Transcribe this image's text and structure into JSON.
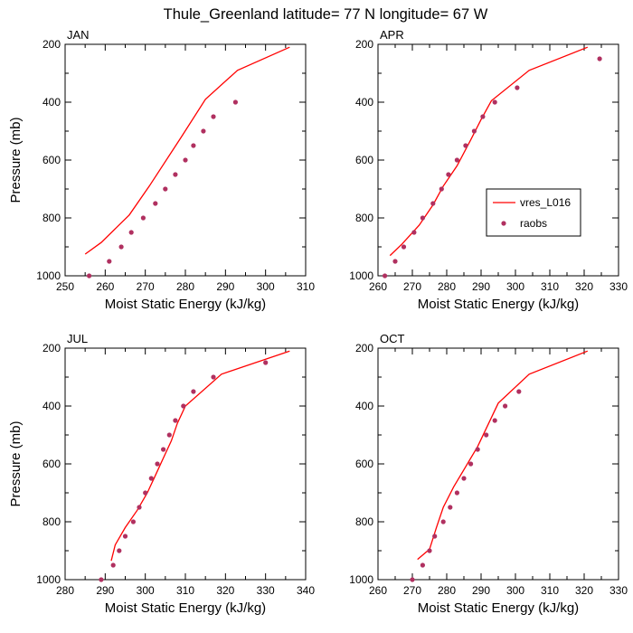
{
  "title": "Thule_Greenland  latitude= 77 N longitude= 67 W",
  "colors": {
    "model": "#ff0000",
    "obs": "#b03060",
    "axis": "#000000"
  },
  "chart_data": [
    {
      "type": "line",
      "panel": "JAN",
      "xlabel": "Moist Static Energy (kJ/kg)",
      "ylabel": "Pressure (mb)",
      "xlim": [
        250,
        310
      ],
      "xticks": [
        250,
        260,
        270,
        280,
        290,
        300,
        310
      ],
      "ylim": [
        1000,
        200
      ],
      "yticks": [
        200,
        400,
        600,
        800,
        1000
      ],
      "ylabel_visible": true,
      "series": [
        {
          "name": "vres_L016",
          "style": "line",
          "x": [
            255,
            259,
            266,
            271,
            279,
            285,
            293,
            306
          ],
          "y": [
            925,
            885,
            790,
            690,
            520,
            390,
            290,
            210
          ]
        },
        {
          "name": "raobs",
          "style": "marker",
          "x": [
            256,
            261,
            264,
            266.5,
            269.5,
            272.5,
            275,
            277.5,
            280,
            282,
            284.5,
            287,
            292.5
          ],
          "y": [
            1000,
            950,
            900,
            850,
            800,
            750,
            700,
            650,
            600,
            550,
            500,
            450,
            400
          ]
        }
      ]
    },
    {
      "type": "line",
      "panel": "APR",
      "xlabel": "Moist Static Energy (kJ/kg)",
      "ylabel": "",
      "xlim": [
        260,
        330
      ],
      "xticks": [
        260,
        270,
        280,
        290,
        300,
        310,
        320,
        330
      ],
      "ylim": [
        1000,
        200
      ],
      "yticks": [
        200,
        400,
        600,
        800,
        1000
      ],
      "ylabel_visible": false,
      "legend": {
        "position": "right-middle",
        "entries": [
          "vres_L016",
          "raobs"
        ]
      },
      "series": [
        {
          "name": "vres_L016",
          "style": "line",
          "x": [
            263.5,
            267,
            272,
            276,
            279,
            283,
            287,
            290,
            293,
            304,
            321
          ],
          "y": [
            930,
            890,
            825,
            755,
            690,
            620,
            530,
            460,
            395,
            290,
            210
          ]
        },
        {
          "name": "raobs",
          "style": "marker",
          "x": [
            262,
            265,
            267.5,
            270.5,
            273,
            276,
            278.5,
            280.5,
            283,
            285.5,
            288,
            290.5,
            294,
            300.5,
            324.5
          ],
          "y": [
            1000,
            950,
            900,
            850,
            800,
            750,
            700,
            650,
            600,
            550,
            500,
            450,
            400,
            350,
            250
          ]
        }
      ]
    },
    {
      "type": "line",
      "panel": "JUL",
      "xlabel": "Moist Static Energy (kJ/kg)",
      "ylabel": "Pressure (mb)",
      "xlim": [
        280,
        340
      ],
      "xticks": [
        280,
        290,
        300,
        310,
        320,
        330,
        340
      ],
      "ylim": [
        1000,
        200
      ],
      "yticks": [
        200,
        400,
        600,
        800,
        1000
      ],
      "ylabel_visible": true,
      "series": [
        {
          "name": "vres_L016",
          "style": "line",
          "x": [
            291.5,
            292.5,
            295,
            298,
            300.5,
            302.5,
            304.5,
            306.5,
            308,
            310,
            319,
            336
          ],
          "y": [
            935,
            880,
            820,
            760,
            700,
            640,
            580,
            520,
            460,
            400,
            290,
            210
          ]
        },
        {
          "name": "raobs",
          "style": "marker",
          "x": [
            289,
            292,
            293.5,
            295,
            297,
            298.5,
            300,
            301.5,
            303,
            304.5,
            306,
            307.5,
            309.5,
            312,
            317,
            330
          ],
          "y": [
            1000,
            950,
            900,
            850,
            800,
            750,
            700,
            650,
            600,
            550,
            500,
            450,
            400,
            350,
            300,
            250
          ]
        }
      ]
    },
    {
      "type": "line",
      "panel": "OCT",
      "xlabel": "Moist Static Energy (kJ/kg)",
      "ylabel": "",
      "xlim": [
        260,
        330
      ],
      "xticks": [
        260,
        270,
        280,
        290,
        300,
        310,
        320,
        330
      ],
      "ylim": [
        1000,
        200
      ],
      "yticks": [
        200,
        400,
        600,
        800,
        1000
      ],
      "ylabel_visible": false,
      "series": [
        {
          "name": "vres_L016",
          "style": "line",
          "x": [
            271.5,
            275,
            277,
            279,
            282,
            285,
            289,
            295,
            304,
            321
          ],
          "y": [
            930,
            895,
            820,
            750,
            680,
            620,
            540,
            390,
            290,
            210
          ]
        },
        {
          "name": "raobs",
          "style": "marker",
          "x": [
            270,
            273,
            275,
            276.5,
            279,
            281,
            283,
            285,
            287,
            289,
            291.5,
            294,
            297,
            301
          ],
          "y": [
            1000,
            950,
            900,
            850,
            800,
            750,
            700,
            650,
            600,
            550,
            500,
            450,
            400,
            350
          ]
        }
      ]
    }
  ]
}
